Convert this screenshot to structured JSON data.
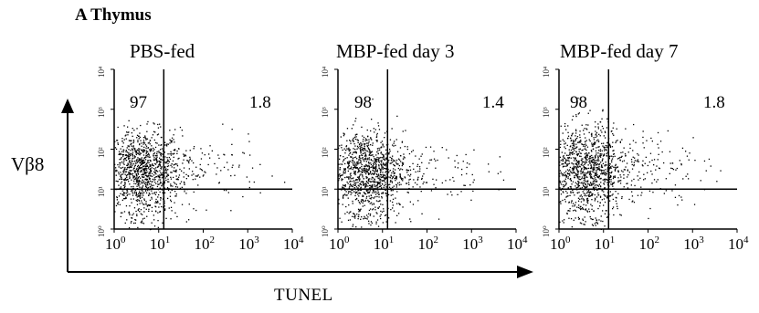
{
  "figure": {
    "panel_label": "A  Thymus",
    "y_axis_label": "Vβ8",
    "x_axis_label": "TUNEL",
    "x_ticks": [
      {
        "base": "10",
        "exp": "0"
      },
      {
        "base": "10",
        "exp": "1"
      },
      {
        "base": "10",
        "exp": "2"
      },
      {
        "base": "10",
        "exp": "3"
      },
      {
        "base": "10",
        "exp": "4"
      }
    ],
    "y_ticks": [
      "10⁰",
      "10¹",
      "10²",
      "10³",
      "10⁴"
    ],
    "panels": [
      {
        "title": "PBS-fed",
        "upper_left": "97",
        "upper_right": "1.8"
      },
      {
        "title": "MBP-fed day 3",
        "upper_left": "98",
        "upper_right": "1.4"
      },
      {
        "title": "MBP-fed day 7",
        "upper_left": "98",
        "upper_right": "1.8"
      }
    ]
  },
  "chart_data": [
    {
      "type": "scatter",
      "title": "PBS-fed",
      "xlabel": "TUNEL",
      "ylabel": "Vβ8",
      "x_scale": "log",
      "y_scale": "log",
      "xlim": [
        1,
        10000
      ],
      "ylim": [
        1,
        10000
      ],
      "gates": {
        "x": 13,
        "y": 10
      },
      "quadrant_percentages": {
        "upper_left": 97,
        "upper_right": 1.8
      },
      "populations": [
        {
          "center": [
            4,
            30
          ],
          "spread": [
            0.45,
            0.5
          ],
          "count": 1100
        },
        {
          "center": [
            5,
            2.2
          ],
          "spread": [
            0.35,
            0.3
          ],
          "count": 80
        },
        {
          "center": [
            60,
            30
          ],
          "spread": [
            0.75,
            0.4
          ],
          "count": 150
        }
      ]
    },
    {
      "type": "scatter",
      "title": "MBP-fed day 3",
      "xlabel": "TUNEL",
      "ylabel": "Vβ8",
      "x_scale": "log",
      "y_scale": "log",
      "xlim": [
        1,
        10000
      ],
      "ylim": [
        1,
        10000
      ],
      "gates": {
        "x": 13,
        "y": 10
      },
      "quadrant_percentages": {
        "upper_left": 98,
        "upper_right": 1.4
      },
      "populations": [
        {
          "center": [
            4,
            30
          ],
          "spread": [
            0.45,
            0.5
          ],
          "count": 1100
        },
        {
          "center": [
            5,
            2.2
          ],
          "spread": [
            0.35,
            0.3
          ],
          "count": 90
        },
        {
          "center": [
            60,
            30
          ],
          "spread": [
            0.75,
            0.4
          ],
          "count": 130
        }
      ]
    },
    {
      "type": "scatter",
      "title": "MBP-fed day 7",
      "xlabel": "TUNEL",
      "ylabel": "Vβ8",
      "x_scale": "log",
      "y_scale": "log",
      "xlim": [
        1,
        10000
      ],
      "ylim": [
        1,
        10000
      ],
      "gates": {
        "x": 13,
        "y": 10
      },
      "quadrant_percentages": {
        "upper_left": 98,
        "upper_right": 1.8
      },
      "populations": [
        {
          "center": [
            4,
            30
          ],
          "spread": [
            0.45,
            0.55
          ],
          "count": 1100
        },
        {
          "center": [
            5,
            2.2
          ],
          "spread": [
            0.35,
            0.3
          ],
          "count": 70
        },
        {
          "center": [
            70,
            40
          ],
          "spread": [
            0.75,
            0.45
          ],
          "count": 170
        }
      ]
    }
  ]
}
